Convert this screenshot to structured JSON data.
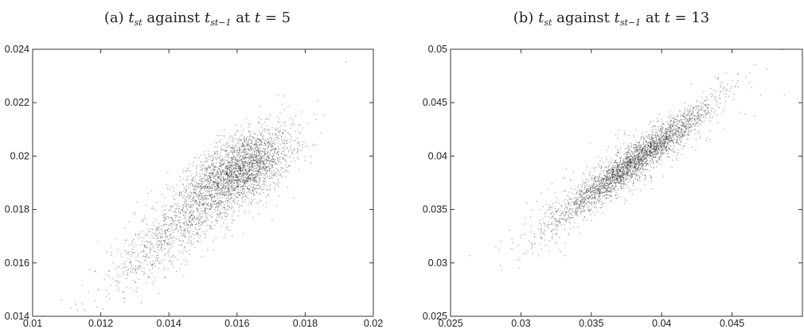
{
  "chart_data": [
    {
      "type": "scatter",
      "title": {
        "prefix": "(a) ",
        "var1": "t",
        "sub1": "st",
        "middle": " against ",
        "var2": "t",
        "sub2": "st−1",
        "after": " at ",
        "var3": "t",
        "tail": " = 5"
      },
      "xlim": [
        0.01,
        0.02
      ],
      "ylim": [
        0.014,
        0.024
      ],
      "xticks": [
        0.01,
        0.012,
        0.014,
        0.016,
        0.018,
        0.02
      ],
      "yticks": [
        0.014,
        0.016,
        0.018,
        0.02,
        0.022,
        0.024
      ],
      "xtick_labels": [
        "0.01",
        "0.012",
        "0.014",
        "0.016",
        "0.018",
        "0.02"
      ],
      "ytick_labels": [
        "0.014",
        "0.016",
        "0.018",
        "0.02",
        "0.022",
        "0.024"
      ],
      "grid": false,
      "point_color": "#1a1a1a",
      "clusters": [
        {
          "center_x": 0.0162,
          "center_y": 0.0196,
          "sd_x": 0.0007,
          "sd_y": 0.0007,
          "rho": 0.45,
          "n": 1800
        },
        {
          "center_x": 0.0152,
          "center_y": 0.0185,
          "sd_x": 0.0011,
          "sd_y": 0.0012,
          "rho": 0.8,
          "n": 1300
        },
        {
          "center_x": 0.0135,
          "center_y": 0.0165,
          "sd_x": 0.0009,
          "sd_y": 0.001,
          "rho": 0.85,
          "n": 350
        }
      ]
    },
    {
      "type": "scatter",
      "title": {
        "prefix": "(b) ",
        "var1": "t",
        "sub1": "st",
        "middle": " against ",
        "var2": "t",
        "sub2": "st−1",
        "after": " at ",
        "var3": "t",
        "tail": " = 13"
      },
      "xlim": [
        0.025,
        0.05
      ],
      "ylim": [
        0.025,
        0.05
      ],
      "xticks": [
        0.025,
        0.03,
        0.035,
        0.04,
        0.045
      ],
      "yticks": [
        0.025,
        0.03,
        0.035,
        0.04,
        0.045,
        0.05
      ],
      "xtick_labels": [
        "0.025",
        "0.03",
        "0.035",
        "0.04",
        "0.045"
      ],
      "ytick_labels": [
        "0.025",
        "0.03",
        "0.035",
        "0.04",
        "0.045",
        "0.05"
      ],
      "grid": false,
      "point_color": "#1a1a1a",
      "clusters": [
        {
          "center_x": 0.038,
          "center_y": 0.0395,
          "sd_x": 0.0028,
          "sd_y": 0.0028,
          "rho": 0.96,
          "n": 2600
        },
        {
          "center_x": 0.0372,
          "center_y": 0.0388,
          "sd_x": 0.0038,
          "sd_y": 0.0037,
          "rho": 0.9,
          "n": 500
        }
      ]
    }
  ]
}
